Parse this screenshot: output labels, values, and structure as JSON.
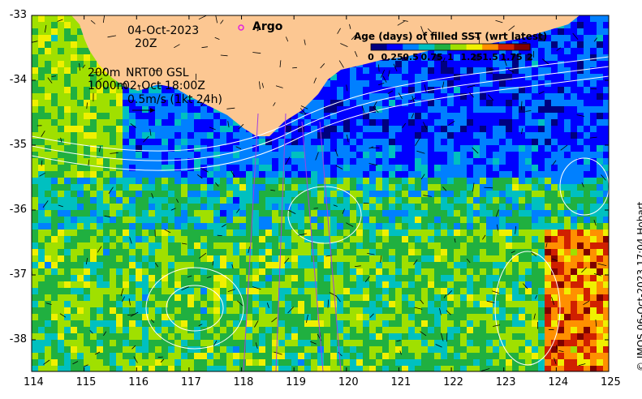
{
  "map": {
    "date_label": "04-Oct-2023",
    "hour_label": "20Z",
    "contour_label_200": "200m",
    "contour_label_1000": "1000m",
    "source_label": "NRT00 GSL",
    "time_label": "02-Oct 18:00Z",
    "vector_scale_label": "0.5m/s (1kt 24h)",
    "argo_label": "Argo",
    "credit": "© IMOS 06-Oct-2023 17:04 Hobart",
    "colors": {
      "land": "#fcc792",
      "argo_marker": "#e020e0",
      "contour": "#ffffff",
      "track": "#a040e0"
    }
  },
  "colorbar": {
    "title": "Age (days) of filled SST (wrt latest)",
    "tick_labels": [
      "0",
      "0.25",
      "0.5",
      "0.75",
      "1",
      "1.25",
      "1.5",
      "1.75",
      "2"
    ],
    "range": [
      0,
      2
    ],
    "colormap": [
      "#00007f",
      "#0000ff",
      "#0080ff",
      "#00c0c0",
      "#20b040",
      "#a0e000",
      "#f0f000",
      "#ff9000",
      "#d02000",
      "#7f0000"
    ]
  },
  "axes": {
    "lon_ticks": [
      "114",
      "115",
      "116",
      "117",
      "118",
      "119",
      "120",
      "121",
      "122",
      "123",
      "124",
      "125"
    ],
    "lat_ticks": [
      "-33",
      "-34",
      "-35",
      "-36",
      "-37",
      "-38"
    ]
  }
}
